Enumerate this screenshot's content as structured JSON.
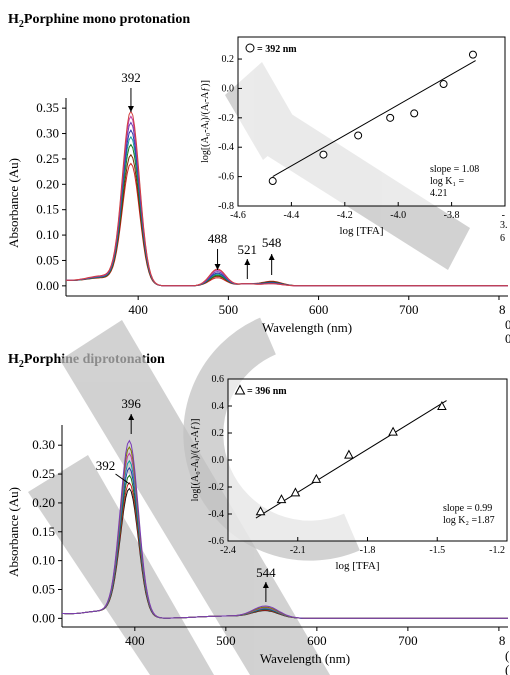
{
  "charts": [
    {
      "type": "line",
      "title_main": "H",
      "title_sub": "2",
      "title_rest": "Porphine mono protonation",
      "xlabel": "Wavelength (nm)",
      "ylabel": "Absorbance (Au)",
      "xlim": [
        320,
        810
      ],
      "ylim": [
        -0.02,
        0.37
      ],
      "xticks": [
        "400",
        "500",
        "600",
        "700",
        "8"
      ],
      "yticks": [
        "0.00",
        "0.05",
        "0.10",
        "0.15",
        "0.20",
        "0.25",
        "0.30",
        "0.35"
      ],
      "peaks": [
        {
          "label": "392",
          "x": 392,
          "direction": "up"
        },
        {
          "label": "488",
          "x": 488,
          "direction": "down"
        },
        {
          "label": "521",
          "x": 521,
          "direction": "up"
        },
        {
          "label": "548",
          "x": 548,
          "direction": "up"
        }
      ],
      "edge_text": [
        "0",
        "0"
      ],
      "series": [
        {
          "color": "#cc2222",
          "peak": 0.238,
          "q488": 0.016,
          "q548": 0.009
        },
        {
          "color": "#7a2a00",
          "peak": 0.255,
          "q488": 0.019,
          "q548": 0.008
        },
        {
          "color": "#1a7a1a",
          "peak": 0.275,
          "q488": 0.021,
          "q548": 0.007
        },
        {
          "color": "#10a0a0",
          "peak": 0.29,
          "q488": 0.023,
          "q548": 0.006
        },
        {
          "color": "#2a3aa8",
          "peak": 0.303,
          "q488": 0.025,
          "q548": 0.006
        },
        {
          "color": "#6a40b0",
          "peak": 0.318,
          "q488": 0.028,
          "q548": 0.005
        },
        {
          "color": "#c03aa8",
          "peak": 0.33,
          "q488": 0.031,
          "q548": 0.004
        },
        {
          "color": "#d04040",
          "peak": 0.34,
          "q488": 0.033,
          "q548": 0.004
        }
      ],
      "inset": {
        "legend": "= 392 nm",
        "marker": "circle",
        "ylabel": "log[(A₀-Aᵢ)/(Aᵢ-Aƒ)]",
        "xlabel": "log [TFA]",
        "xlim": [
          -4.6,
          -3.6
        ],
        "ylim": [
          -0.8,
          0.35
        ],
        "xticks": [
          "-4.6",
          "-4.4",
          "-4.2",
          "-4.0",
          "-3.8",
          "-"
        ],
        "yticks": [
          "-0.8",
          "-0.6",
          "-0.4",
          "-0.2",
          "0.0",
          "0.2"
        ],
        "points": [
          {
            "x": -4.47,
            "y": -0.63
          },
          {
            "x": -4.28,
            "y": -0.45
          },
          {
            "x": -4.15,
            "y": -0.32
          },
          {
            "x": -4.03,
            "y": -0.2
          },
          {
            "x": -3.94,
            "y": -0.17
          },
          {
            "x": -3.83,
            "y": 0.03
          },
          {
            "x": -3.72,
            "y": 0.23
          }
        ],
        "fit": [
          [
            -4.47,
            -0.6
          ],
          [
            -3.71,
            0.19
          ]
        ],
        "annot": [
          "slope = 1.08",
          "log K₁ =",
          "4.21"
        ],
        "edge_text": [
          "3.",
          "6"
        ]
      }
    },
    {
      "type": "line",
      "title_main": "H",
      "title_sub": "2",
      "title_rest": "Porphine diprotonation",
      "xlabel": "Wavelength (nm)",
      "ylabel": "Absorbance (Au)",
      "xlim": [
        320,
        810
      ],
      "ylim": [
        -0.015,
        0.335
      ],
      "xticks": [
        "400",
        "500",
        "600",
        "700",
        "8"
      ],
      "yticks": [
        "0.00",
        "0.05",
        "0.10",
        "0.15",
        "0.20",
        "0.25",
        "0.30"
      ],
      "peaks": [
        {
          "label": "396",
          "x": 396,
          "direction": "up"
        },
        {
          "label": "392",
          "x": 392,
          "direction": "down"
        },
        {
          "label": "544",
          "x": 544,
          "direction": "up"
        }
      ],
      "edge_text": [
        "(",
        "("
      ],
      "series": [
        {
          "color": "#111111",
          "peak": 0.222,
          "q544": 0.012
        },
        {
          "color": "#cc2222",
          "peak": 0.232,
          "q544": 0.013
        },
        {
          "color": "#1a7a1a",
          "peak": 0.245,
          "q544": 0.014
        },
        {
          "color": "#2a3aa8",
          "peak": 0.258,
          "q544": 0.015
        },
        {
          "color": "#10a0a0",
          "peak": 0.27,
          "q544": 0.016
        },
        {
          "color": "#c03aa8",
          "peak": 0.283,
          "q544": 0.017
        },
        {
          "color": "#808000",
          "peak": 0.294,
          "q544": 0.018
        },
        {
          "color": "#7a3ab8",
          "peak": 0.305,
          "q544": 0.02
        }
      ],
      "inset": {
        "legend": "= 396 nm",
        "marker": "triangle",
        "ylabel": "log[(A₀-Aᵢ)/(Aᵢ-Aƒ)]",
        "xlabel": "log [TFA]",
        "xlim": [
          -2.4,
          -1.2
        ],
        "ylim": [
          -0.6,
          0.6
        ],
        "xticks": [
          "-2.4",
          "-2.1",
          "-1.8",
          "-1.5",
          "-1.2"
        ],
        "yticks": [
          "-0.6",
          "-0.4",
          "-0.2",
          "0.0",
          "0.2",
          "0.4",
          "0.6"
        ],
        "points": [
          {
            "x": -2.26,
            "y": -0.38
          },
          {
            "x": -2.17,
            "y": -0.29
          },
          {
            "x": -2.11,
            "y": -0.24
          },
          {
            "x": -2.02,
            "y": -0.14
          },
          {
            "x": -1.88,
            "y": 0.04
          },
          {
            "x": -1.69,
            "y": 0.21
          },
          {
            "x": -1.48,
            "y": 0.4
          }
        ],
        "fit": [
          [
            -2.28,
            -0.43
          ],
          [
            -1.46,
            0.44
          ]
        ],
        "annot": [
          "slope = 0.99",
          "log K₂ =1.87"
        ],
        "edge_text": []
      }
    }
  ],
  "layout_note_free": true
}
